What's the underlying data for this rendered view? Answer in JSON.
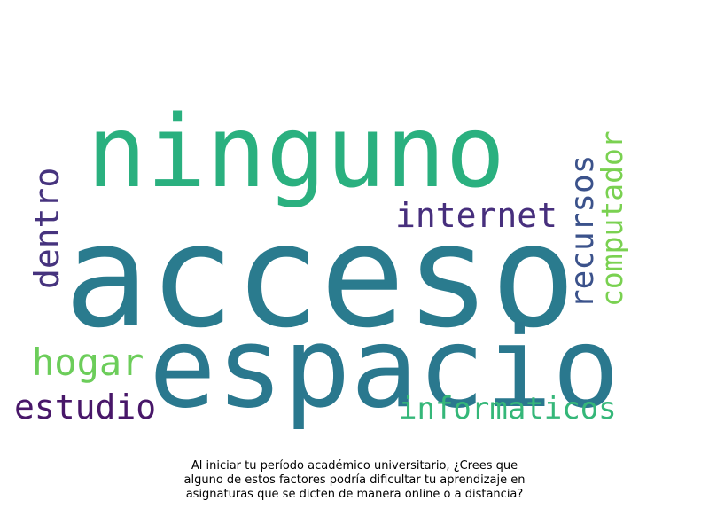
{
  "wordcloud": {
    "words": [
      {
        "key": "ninguno",
        "text": "ninguno",
        "color": "#2ab07f"
      },
      {
        "key": "acceso",
        "text": "acceso",
        "color": "#2a7b8e"
      },
      {
        "key": "espacio",
        "text": "espacio",
        "color": "#2a788e"
      },
      {
        "key": "dentro",
        "text": "dentro",
        "color": "#46337e"
      },
      {
        "key": "internet",
        "text": "internet",
        "color": "#472f7d"
      },
      {
        "key": "recursos",
        "text": "recursos",
        "color": "#3b528b"
      },
      {
        "key": "computador",
        "text": "computador",
        "color": "#7ad151"
      },
      {
        "key": "hogar",
        "text": "hogar",
        "color": "#6ccd5a"
      },
      {
        "key": "estudio",
        "text": "estudio",
        "color": "#481769"
      },
      {
        "key": "informaticos",
        "text": "informaticos",
        "color": "#35b779"
      }
    ]
  },
  "caption": {
    "line1": "Al iniciar tu período académico universitario, ¿Crees que",
    "line2": "alguno de estos factores podría dificultar tu aprendizaje en",
    "line3": "asignaturas que se dicten de manera online o a distancia?"
  }
}
